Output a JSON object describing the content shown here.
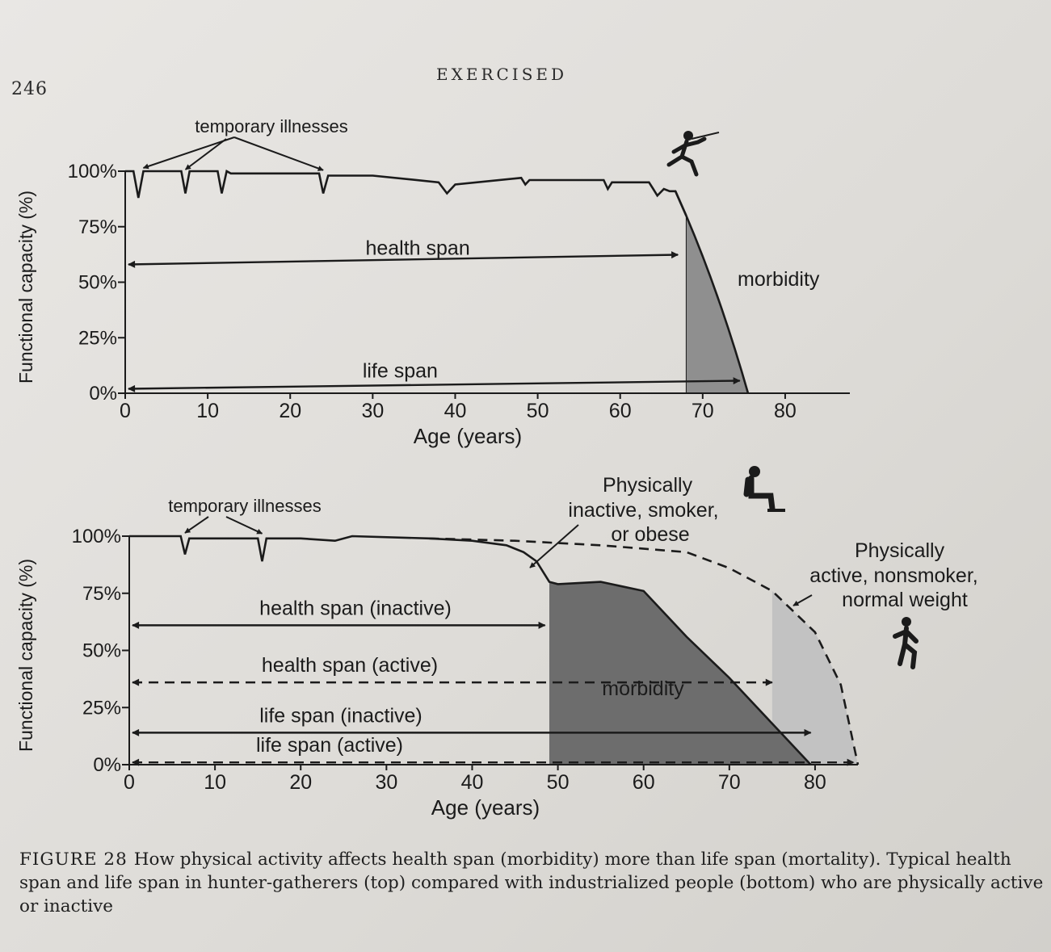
{
  "page": {
    "number": "246",
    "running_head": "EXERCISED"
  },
  "caption": {
    "label": "FIGURE 28",
    "text": "How physical activity affects health span (morbidity) more than life span (mortality). Typical health span and life span in hunter-gatherers (top) compared with industrialized people (bottom) who are physically active or inactive"
  },
  "colors": {
    "ink": "#1b1b1b",
    "morbidity_top": "#8f8f8f",
    "morbidity_inactive": "#6d6d6d",
    "morbidity_active": "#c2c2c2"
  },
  "chart_data": [
    {
      "type": "line",
      "title": "hunter-gatherers",
      "xlabel": "Age (years)",
      "ylabel": "Functional capacity (%)",
      "xlim": [
        0,
        85
      ],
      "ylim": [
        0,
        100
      ],
      "x_ticks": [
        0,
        10,
        20,
        30,
        40,
        50,
        60,
        70,
        80
      ],
      "y_ticks": [
        "0%",
        "25%",
        "50%",
        "75%",
        "100%"
      ],
      "series": [
        {
          "name": "functional capacity",
          "x": [
            0,
            1,
            1.6,
            2.2,
            3,
            6.8,
            7.3,
            7.8,
            8.2,
            11.2,
            11.7,
            12.3,
            12.8,
            23.5,
            24,
            24.6,
            30,
            38,
            39,
            40,
            48,
            48.5,
            49,
            58,
            58.5,
            59,
            63.5,
            64,
            64.5,
            65.3,
            66,
            66.7,
            68
          ],
          "values": [
            100,
            100,
            88,
            100,
            100,
            100,
            90,
            100,
            100,
            100,
            90,
            100,
            99,
            99,
            90,
            98,
            98,
            95,
            90,
            94,
            97,
            94,
            96,
            96,
            92,
            95,
            95,
            92,
            89,
            92,
            91,
            91,
            80
          ]
        }
      ],
      "morbidity_region": {
        "x_start": 68,
        "x_end": 75.5,
        "y_start": 80,
        "label": "morbidity"
      },
      "annotations": {
        "illness_label": "temporary illnesses",
        "health_span": {
          "label": "health span",
          "from": 0,
          "to": 67,
          "y": 58
        },
        "life_span": {
          "label": "life span",
          "from": 0,
          "to": 74.5,
          "y": 2
        }
      }
    },
    {
      "type": "line",
      "title": "industrialized people",
      "xlabel": "Age (years)",
      "ylabel": "Functional capacity (%)",
      "xlim": [
        0,
        85
      ],
      "ylim": [
        0,
        100
      ],
      "x_ticks": [
        0,
        10,
        20,
        30,
        40,
        50,
        60,
        70,
        80
      ],
      "y_ticks": [
        "0%",
        "25%",
        "50%",
        "75%",
        "100%"
      ],
      "series": [
        {
          "name": "Physically inactive, smoker, or obese",
          "style": "solid",
          "x": [
            0,
            6,
            6.5,
            7,
            15,
            15.5,
            16,
            20,
            24,
            26,
            35,
            40,
            44,
            46,
            47.5,
            49,
            50,
            55,
            60,
            65,
            70,
            75,
            79.5
          ],
          "values": [
            100,
            100,
            92,
            99,
            99,
            89,
            99,
            99,
            98,
            100,
            99,
            98,
            96,
            93,
            89,
            80,
            79,
            80,
            76,
            56,
            38,
            18,
            0
          ]
        },
        {
          "name": "Physically active, nonsmoker, normal weight",
          "style": "dashed",
          "x": [
            35,
            45,
            55,
            65,
            70,
            75,
            80,
            83,
            85
          ],
          "values": [
            99,
            98,
            96,
            93,
            86,
            76,
            58,
            35,
            0
          ]
        }
      ],
      "morbidity_regions": [
        {
          "series": "inactive",
          "x_start": 49,
          "x_end": 79.5,
          "label": "morbidity"
        },
        {
          "series": "active",
          "x_start": 75,
          "x_end": 85
        }
      ],
      "annotations": {
        "illness_label": "temporary illnesses",
        "inactive_label": [
          "Physically",
          "inactive, smoker,",
          "or obese"
        ],
        "active_label": [
          "Physically",
          "active, nonsmoker,",
          "normal weight"
        ],
        "arrows": [
          {
            "label": "health span (inactive)",
            "from": 0,
            "to": 48.5,
            "y": 61,
            "style": "solid"
          },
          {
            "label": "health span (active)",
            "from": 0,
            "to": 75,
            "y": 36,
            "style": "dashed"
          },
          {
            "label": "life span (inactive)",
            "from": 0,
            "to": 79.5,
            "y": 14,
            "style": "solid"
          },
          {
            "label": "life span (active)",
            "from": 0,
            "to": 84.5,
            "y": 1,
            "style": "dashed"
          }
        ]
      }
    }
  ]
}
